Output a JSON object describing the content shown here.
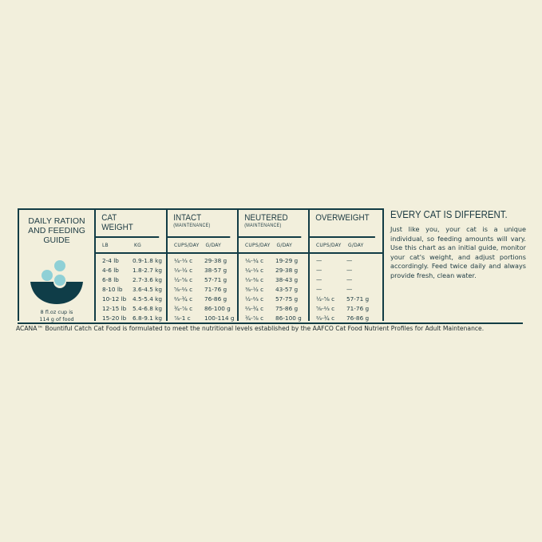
{
  "colors": {
    "background": "#f2efdc",
    "ink": "#123c45",
    "bowl": "#0f3d48",
    "kibble": "#8fd0d6"
  },
  "guide": {
    "title_line1": "DAILY RATION",
    "title_line2": "AND FEEDING GUIDE",
    "icon": "bowl-with-kibble-icon",
    "note_line1": "8 fl.oz cup is",
    "note_line2": "114 g of food"
  },
  "columns": {
    "weight": {
      "title_line1": "CAT",
      "title_line2": "WEIGHT",
      "sub": [
        "LB",
        "KG"
      ]
    },
    "intact": {
      "title": "INTACT",
      "subtitle": "(MAINTENANCE)",
      "sub": [
        "CUPS/DAY",
        "G/DAY"
      ]
    },
    "neutered": {
      "title": "NEUTERED",
      "subtitle": "(MAINTENANCE)",
      "sub": [
        "CUPS/DAY",
        "G/DAY"
      ]
    },
    "overweight": {
      "title": "OVERWEIGHT",
      "sub": [
        "CUPS/DAY",
        "G/DAY"
      ]
    }
  },
  "rows": [
    {
      "lb": "2-4 lb",
      "kg": "0.9-1.8 kg",
      "intact_c": "¼-⅓ c",
      "intact_g": "29-38 g",
      "neut_c": "⅙-¼ c",
      "neut_g": "19-29 g",
      "ow_c": "—",
      "ow_g": "—"
    },
    {
      "lb": "4-6 lb",
      "kg": "1.8-2.7 kg",
      "intact_c": "⅓-½ c",
      "intact_g": "38-57 g",
      "neut_c": "¼-⅓ c",
      "neut_g": "29-38 g",
      "ow_c": "—",
      "ow_g": "—"
    },
    {
      "lb": "6-8 lb",
      "kg": "2.7-3.6 kg",
      "intact_c": "½-⅝ c",
      "intact_g": "57-71 g",
      "neut_c": "⅓-⅜ c",
      "neut_g": "38-43 g",
      "ow_c": "—",
      "ow_g": "—"
    },
    {
      "lb": "8-10 lb",
      "kg": "3.6-4.5 kg",
      "intact_c": "⅝-⅔ c",
      "intact_g": "71-76 g",
      "neut_c": "⅜-½ c",
      "neut_g": "43-57 g",
      "ow_c": "—",
      "ow_g": "—"
    },
    {
      "lb": "10-12 lb",
      "kg": "4.5-5.4 kg",
      "intact_c": "⅔-¾ c",
      "intact_g": "76-86 g",
      "neut_c": "½-⅔ c",
      "neut_g": "57-75 g",
      "ow_c": "½-⅝ c",
      "ow_g": "57-71 g"
    },
    {
      "lb": "12-15 lb",
      "kg": "5.4-6.8 kg",
      "intact_c": "¾-⅞ c",
      "intact_g": "86-100 g",
      "neut_c": "⅔-¾ c",
      "neut_g": "75-86 g",
      "ow_c": "⅝-⅔ c",
      "ow_g": "71-76 g"
    },
    {
      "lb": "15-20 lb",
      "kg": "6.8-9.1 kg",
      "intact_c": "⅞-1 c",
      "intact_g": "100-114 g",
      "neut_c": "¾-⅞ c",
      "neut_g": "86-100 g",
      "ow_c": "⅔-¾ c",
      "ow_g": "76-86 g"
    }
  ],
  "side": {
    "heading": "EVERY CAT IS DIFFERENT.",
    "body": "Just like you, your cat is a unique individual, so feeding amounts will vary. Use this chart as an initial guide, monitor your cat's weight, and adjust portions accordingly. Feed twice daily and always provide fresh, clean water."
  },
  "footer": "ACANA™ Bountiful Catch Cat Food is formulated to meet the nutritional levels established by the AAFCO Cat Food Nutrient Profiles for Adult Maintenance."
}
